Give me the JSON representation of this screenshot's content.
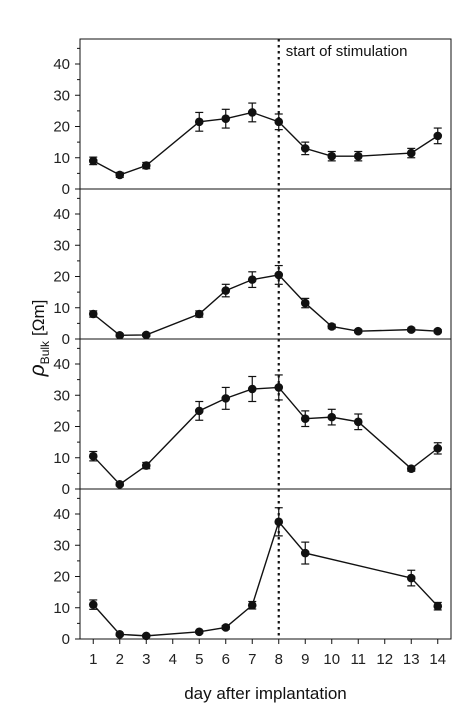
{
  "chart_data": {
    "type": "line",
    "xlabel": "day after implantation",
    "ylabel": {
      "symbol": "ρ",
      "subscript": "Bulk",
      "unit": "[Ωm]"
    },
    "xlim": [
      0.5,
      14.5
    ],
    "xticks": [
      1,
      2,
      3,
      4,
      5,
      6,
      7,
      8,
      9,
      10,
      11,
      12,
      13,
      14
    ],
    "ylim": [
      0,
      48
    ],
    "yticks": [
      0,
      10,
      20,
      30,
      40
    ],
    "annotation": {
      "x": 8,
      "label": "start of stimulation"
    },
    "grid": false,
    "panels": [
      {
        "x": [
          1,
          2,
          3,
          5,
          6,
          7,
          8,
          9,
          10,
          11,
          13,
          14
        ],
        "y": [
          9,
          4.5,
          7.5,
          21.5,
          22.5,
          24.5,
          21.5,
          13,
          10.5,
          10.5,
          11.5,
          17
        ],
        "err": [
          1.2,
          0.8,
          1,
          3,
          3,
          3,
          2.5,
          2,
          1.5,
          1.5,
          1.5,
          2.5
        ]
      },
      {
        "x": [
          1,
          2,
          3,
          5,
          6,
          7,
          8,
          9,
          10,
          11,
          13,
          14
        ],
        "y": [
          8,
          1.2,
          1.3,
          8,
          15.5,
          19,
          20.5,
          11.5,
          4,
          2.5,
          3,
          2.5
        ],
        "err": [
          1,
          0.5,
          0.5,
          1,
          2,
          2.5,
          3,
          1.5,
          0.7,
          0.5,
          0.5,
          0.5
        ]
      },
      {
        "x": [
          1,
          2,
          3,
          5,
          6,
          7,
          8,
          9,
          10,
          11,
          13,
          14
        ],
        "y": [
          10.5,
          1.5,
          7.5,
          25,
          29,
          32,
          32.5,
          22.5,
          23,
          21.5,
          6.5,
          13
        ],
        "err": [
          1.5,
          0.5,
          1,
          3,
          3.5,
          4,
          4,
          2.5,
          2.5,
          2.5,
          0.8,
          1.8
        ]
      },
      {
        "x": [
          1,
          2,
          3,
          5,
          6,
          7,
          8,
          9,
          13,
          14
        ],
        "y": [
          11,
          1.5,
          1,
          2.3,
          3.7,
          10.8,
          37.5,
          27.5,
          19.5,
          10.5
        ],
        "err": [
          1.5,
          0.4,
          0.3,
          0.4,
          0.6,
          1.2,
          4.5,
          3.5,
          2.5,
          1.2
        ]
      }
    ]
  }
}
